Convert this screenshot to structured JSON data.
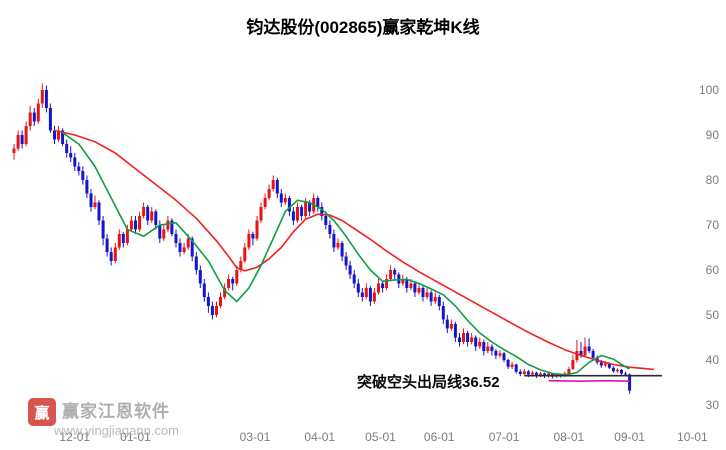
{
  "page": {
    "title": "钧达股份(002865)赢家乾坤K线"
  },
  "watermark": {
    "logo_text": "赢",
    "brand": "赢家江恩软件",
    "url": "www.yingjiagann.com"
  },
  "chart_data": {
    "type": "candlestick",
    "title": "钧达股份(002865)赢家乾坤K线",
    "stock_name": "钧达股份",
    "symbol": "002865",
    "legend": "赢家乾坤K线",
    "grid": false,
    "y_axis": {
      "min": 30,
      "max": 100,
      "ticks": [
        100,
        90,
        80,
        70,
        60,
        50,
        40,
        30
      ]
    },
    "x_ticks": [
      {
        "label": "12-01",
        "day": 15
      },
      {
        "label": "01-01",
        "day": 30
      },
      {
        "label": "03-01",
        "day": 59.5
      },
      {
        "label": "04-01",
        "day": 75.5
      },
      {
        "label": "05-01",
        "day": 90.5
      },
      {
        "label": "06-01",
        "day": 105
      },
      {
        "label": "07-01",
        "day": 121
      },
      {
        "label": "08-01",
        "day": 137
      },
      {
        "label": "09-01",
        "day": 152
      },
      {
        "label": "10-01",
        "day": 167.5
      }
    ],
    "annotation": {
      "text": "突破空头出局线36.52",
      "value": 36.52
    },
    "exit_line": {
      "value": 36.52,
      "day_start": 126,
      "day_end": 160,
      "color": "#2b2b2b"
    },
    "colors": {
      "up": "#e81414",
      "down": "#1414cc"
    },
    "candles": [
      [
        86,
        88,
        84.5,
        87
      ],
      [
        87,
        91,
        86.5,
        90
      ],
      [
        90,
        91,
        87,
        88
      ],
      [
        88,
        93,
        87.5,
        92
      ],
      [
        92,
        96.5,
        91,
        95
      ],
      [
        95,
        96,
        92,
        93
      ],
      [
        93,
        98,
        92.5,
        97
      ],
      [
        97,
        101.5,
        96,
        100
      ],
      [
        100,
        101,
        95,
        96
      ],
      [
        96,
        97,
        90.5,
        91
      ],
      [
        91,
        92,
        88,
        89
      ],
      [
        89,
        92,
        88.5,
        91
      ],
      [
        91,
        91.5,
        87.5,
        88
      ],
      [
        88,
        89,
        85,
        86
      ],
      [
        86,
        87.5,
        84,
        85
      ],
      [
        85,
        86,
        82,
        83
      ],
      [
        83,
        84,
        81,
        82
      ],
      [
        82,
        83,
        79,
        80
      ],
      [
        80,
        81,
        76,
        77
      ],
      [
        77,
        78,
        73,
        74
      ],
      [
        74,
        76.5,
        73.5,
        75
      ],
      [
        75,
        75.5,
        70,
        71
      ],
      [
        71,
        72,
        65.5,
        67
      ],
      [
        67,
        68,
        63,
        64
      ],
      [
        64,
        65,
        61,
        62
      ],
      [
        62,
        66,
        61.5,
        65
      ],
      [
        65,
        69,
        64.5,
        68
      ],
      [
        68,
        68.5,
        65,
        66
      ],
      [
        66,
        70,
        65.5,
        69
      ],
      [
        69,
        72,
        68.5,
        71
      ],
      [
        71,
        72,
        68,
        69
      ],
      [
        69,
        73,
        68.5,
        72
      ],
      [
        72,
        75,
        71.5,
        74
      ],
      [
        74,
        74.5,
        70,
        71
      ],
      [
        71,
        74,
        70.5,
        73
      ],
      [
        73,
        73.5,
        69,
        70
      ],
      [
        70,
        71,
        66,
        67
      ],
      [
        67,
        70,
        66.5,
        69
      ],
      [
        69,
        72,
        68.5,
        71
      ],
      [
        71,
        71.5,
        67.5,
        68
      ],
      [
        68,
        69,
        65,
        66
      ],
      [
        66,
        67,
        63,
        64
      ],
      [
        64,
        66,
        63.5,
        65
      ],
      [
        65,
        68,
        64.5,
        67
      ],
      [
        67,
        67.5,
        62,
        63
      ],
      [
        63,
        64,
        59,
        60
      ],
      [
        60,
        61,
        56,
        57
      ],
      [
        57,
        58,
        53,
        54
      ],
      [
        54,
        55,
        50.5,
        52
      ],
      [
        52,
        53,
        49,
        50
      ],
      [
        50,
        53,
        49.5,
        52
      ],
      [
        52,
        55,
        51.5,
        54
      ],
      [
        54,
        57,
        53.5,
        56
      ],
      [
        56,
        59,
        55.5,
        58
      ],
      [
        58,
        58.5,
        55.5,
        57
      ],
      [
        57,
        61,
        56.5,
        60
      ],
      [
        60,
        63,
        59.5,
        62
      ],
      [
        62,
        66,
        61.5,
        65
      ],
      [
        65,
        69,
        64.5,
        68
      ],
      [
        68,
        68.5,
        65.5,
        67
      ],
      [
        67,
        72,
        66.5,
        71
      ],
      [
        71,
        75,
        70.5,
        74
      ],
      [
        74,
        77,
        73.5,
        76
      ],
      [
        76,
        79,
        75.5,
        78
      ],
      [
        78,
        81,
        77.5,
        80
      ],
      [
        80,
        80.5,
        76,
        77
      ],
      [
        77,
        78,
        74,
        75
      ],
      [
        75,
        77,
        74.5,
        76
      ],
      [
        76,
        76.5,
        72,
        73
      ],
      [
        73,
        74,
        70,
        71
      ],
      [
        71,
        75,
        70.5,
        74
      ],
      [
        74,
        74.5,
        71,
        72
      ],
      [
        72,
        76,
        71.5,
        75
      ],
      [
        75,
        75.5,
        72,
        73
      ],
      [
        73,
        77,
        72.5,
        76
      ],
      [
        76,
        76.5,
        73,
        74
      ],
      [
        74,
        75,
        71,
        72
      ],
      [
        72,
        73,
        69,
        70
      ],
      [
        70,
        71,
        67,
        68
      ],
      [
        68,
        69,
        64,
        65
      ],
      [
        65,
        67,
        64.5,
        66
      ],
      [
        66,
        66.5,
        62,
        63
      ],
      [
        63,
        64,
        60,
        61
      ],
      [
        61,
        62,
        58,
        59
      ],
      [
        59,
        60,
        56,
        57
      ],
      [
        57,
        58,
        54,
        55
      ],
      [
        55,
        56,
        53,
        54
      ],
      [
        54,
        57,
        53.5,
        56
      ],
      [
        56,
        56.5,
        52,
        53
      ],
      [
        53,
        56,
        52.5,
        55
      ],
      [
        55,
        58,
        54.5,
        57
      ],
      [
        57,
        57.5,
        55,
        56
      ],
      [
        56,
        59,
        55.5,
        58
      ],
      [
        58,
        61,
        57.5,
        60
      ],
      [
        60,
        60.5,
        58,
        59
      ],
      [
        59,
        59.5,
        56,
        57
      ],
      [
        57,
        59,
        56.5,
        58
      ],
      [
        58,
        58.5,
        55,
        56
      ],
      [
        56,
        58,
        55.5,
        57
      ],
      [
        57,
        57.5,
        54,
        55
      ],
      [
        55,
        57,
        54.5,
        56
      ],
      [
        56,
        56.5,
        53,
        54
      ],
      [
        54,
        56,
        53.5,
        55
      ],
      [
        55,
        55.5,
        52,
        53
      ],
      [
        53,
        55,
        52.5,
        54
      ],
      [
        54,
        54.5,
        51,
        52
      ],
      [
        52,
        53,
        48,
        49
      ],
      [
        49,
        50,
        46,
        47
      ],
      [
        47,
        49,
        46.5,
        48
      ],
      [
        48,
        48.5,
        44,
        45
      ],
      [
        45,
        46,
        43,
        44
      ],
      [
        44,
        47,
        43.5,
        46
      ],
      [
        46,
        46.5,
        43,
        44
      ],
      [
        44,
        46,
        43.5,
        45
      ],
      [
        45,
        45.5,
        42,
        43
      ],
      [
        43,
        45,
        42.5,
        44
      ],
      [
        44,
        44.5,
        41,
        42
      ],
      [
        42,
        44,
        41.5,
        43
      ],
      [
        43,
        43.5,
        41,
        42
      ],
      [
        42,
        42.5,
        40.2,
        41
      ],
      [
        41,
        42.2,
        40.5,
        41.5
      ],
      [
        41.5,
        41.8,
        39.5,
        40
      ],
      [
        40,
        40.3,
        38,
        38.5
      ],
      [
        38.5,
        39.6,
        38,
        39
      ],
      [
        39,
        39.2,
        37,
        37.4
      ],
      [
        37.4,
        37.9,
        36.4,
        36.9
      ],
      [
        36.9,
        38,
        36.6,
        37.5
      ],
      [
        37.5,
        37.8,
        36.2,
        36.8
      ],
      [
        36.8,
        37.6,
        36.4,
        37.2
      ],
      [
        37.2,
        37.4,
        36,
        36.6
      ],
      [
        36.6,
        37.4,
        36.2,
        37
      ],
      [
        37,
        37.2,
        36,
        36.5
      ],
      [
        36.5,
        37.3,
        36.1,
        37
      ],
      [
        37,
        37.1,
        35.9,
        36.3
      ],
      [
        36.3,
        37.1,
        36,
        36.8
      ],
      [
        36.8,
        37,
        36.1,
        36.5
      ],
      [
        36.5,
        37.4,
        36.2,
        37
      ],
      [
        37,
        38.5,
        36.8,
        38
      ],
      [
        38,
        41,
        37.8,
        40
      ],
      [
        40,
        44.5,
        39.5,
        42
      ],
      [
        42,
        44,
        40.5,
        41
      ],
      [
        41,
        45,
        40.8,
        43
      ],
      [
        43,
        44.8,
        41.5,
        42
      ],
      [
        42,
        42.5,
        40,
        40.5
      ],
      [
        40.5,
        41,
        39,
        39.5
      ],
      [
        39.5,
        40,
        38.3,
        38.8
      ],
      [
        38.8,
        39.8,
        38.4,
        39.2
      ],
      [
        39.2,
        39.5,
        38,
        38.3
      ],
      [
        38.3,
        38.6,
        37.2,
        37.5
      ],
      [
        37.5,
        38.2,
        37.1,
        37.8
      ],
      [
        37.8,
        38,
        36.7,
        37
      ],
      [
        37,
        37.4,
        36.4,
        36.8
      ],
      [
        36.8,
        37,
        32.5,
        33.2
      ]
    ],
    "ma_lines": [
      {
        "name": "ma-red-line",
        "color": "#f52020",
        "points": [
          [
            10,
            91
          ],
          [
            15,
            90
          ],
          [
            20,
            88.5
          ],
          [
            25,
            86
          ],
          [
            30,
            82.5
          ],
          [
            35,
            79
          ],
          [
            40,
            75.5
          ],
          [
            45,
            71.5
          ],
          [
            50,
            66.5
          ],
          [
            53,
            63
          ],
          [
            55,
            60.5
          ],
          [
            57,
            59.8
          ],
          [
            60,
            60.6
          ],
          [
            63,
            62.5
          ],
          [
            66,
            65
          ],
          [
            69,
            68.5
          ],
          [
            72,
            71.3
          ],
          [
            75,
            72.4
          ],
          [
            78,
            72.2
          ],
          [
            81,
            71
          ],
          [
            84,
            69.2
          ],
          [
            88,
            66.8
          ],
          [
            92,
            64.2
          ],
          [
            96,
            61.8
          ],
          [
            100,
            59.6
          ],
          [
            104,
            57.6
          ],
          [
            108,
            55.6
          ],
          [
            112,
            53.6
          ],
          [
            116,
            51.6
          ],
          [
            120,
            49.6
          ],
          [
            124,
            47.6
          ],
          [
            128,
            45.7
          ],
          [
            132,
            43.9
          ],
          [
            136,
            42.3
          ],
          [
            140,
            41
          ],
          [
            144,
            39.9
          ],
          [
            148,
            39
          ],
          [
            152,
            38.4
          ],
          [
            158,
            37.9
          ]
        ]
      },
      {
        "name": "ma-green-line",
        "color": "#0f9e45",
        "points": [
          [
            12,
            90.5
          ],
          [
            16,
            88
          ],
          [
            20,
            83
          ],
          [
            24,
            76
          ],
          [
            28,
            69
          ],
          [
            32,
            67.5
          ],
          [
            36,
            70
          ],
          [
            40,
            70.5
          ],
          [
            44,
            66.5
          ],
          [
            48,
            62
          ],
          [
            52,
            55.5
          ],
          [
            55,
            53
          ],
          [
            58,
            56
          ],
          [
            61,
            61
          ],
          [
            64,
            67
          ],
          [
            67,
            73
          ],
          [
            70,
            75.5
          ],
          [
            73,
            75
          ],
          [
            76,
            73.5
          ],
          [
            79,
            71
          ],
          [
            82,
            67.5
          ],
          [
            85,
            63.5
          ],
          [
            88,
            60
          ],
          [
            91,
            57.5
          ],
          [
            94,
            57.8
          ],
          [
            97,
            57.9
          ],
          [
            100,
            57
          ],
          [
            103,
            55.8
          ],
          [
            106,
            54.5
          ],
          [
            109,
            52
          ],
          [
            112,
            48.8
          ],
          [
            115,
            46
          ],
          [
            118,
            44
          ],
          [
            121,
            42.3
          ],
          [
            124,
            40.8
          ],
          [
            127,
            39
          ],
          [
            130,
            37.8
          ],
          [
            133,
            37
          ],
          [
            136,
            36.7
          ],
          [
            139,
            37.2
          ],
          [
            142,
            39.5
          ],
          [
            145,
            41
          ],
          [
            148,
            40.2
          ],
          [
            150,
            39
          ],
          [
            152,
            38
          ]
        ]
      },
      {
        "name": "ma-magenta-line",
        "color": "#d613c3",
        "points": [
          [
            132,
            35.4
          ],
          [
            140,
            35.3
          ],
          [
            146,
            35.4
          ],
          [
            152,
            35.3
          ]
        ]
      }
    ]
  }
}
